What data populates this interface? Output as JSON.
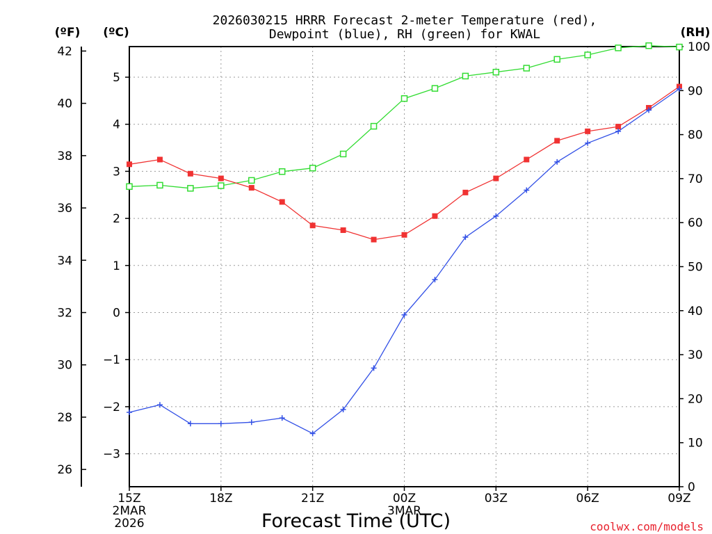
{
  "chart_data": {
    "type": "line",
    "title_line1": "2026030215 HRRR Forecast 2-meter Temperature (red),",
    "title_line2": "Dewpoint (blue), RH (green) for KWAL",
    "xlabel": "Forecast Time (UTC)",
    "credit": "coolwx.com/models",
    "units": {
      "fahrenheit": "(ºF)",
      "celsius": "(ºC)",
      "rh": "(RH)"
    },
    "x": [
      0,
      1,
      2,
      3,
      4,
      5,
      6,
      7,
      8,
      9,
      10,
      11,
      12,
      13,
      14,
      15,
      16,
      17,
      18
    ],
    "xlim": [
      0,
      18
    ],
    "x_ticks": [
      {
        "x": 0,
        "label": "15Z",
        "sub1": "2MAR",
        "sub2": "2026"
      },
      {
        "x": 3,
        "label": "18Z"
      },
      {
        "x": 6,
        "label": "21Z"
      },
      {
        "x": 9,
        "label": "00Z",
        "sub1": "3MAR"
      },
      {
        "x": 12,
        "label": "03Z"
      },
      {
        "x": 15,
        "label": "06Z"
      },
      {
        "x": 18,
        "label": "09Z"
      }
    ],
    "celsius_axis": {
      "ylim": [
        -3.7,
        5.65
      ],
      "ticks": [
        5,
        4,
        3,
        2,
        1,
        0,
        -1,
        -2,
        -3
      ],
      "tick_labels": [
        "5",
        "4",
        "3",
        "2",
        "1",
        "0",
        "−1",
        "−2",
        "−3"
      ]
    },
    "fahrenheit_axis": {
      "ticks": [
        42,
        40,
        38,
        36,
        34,
        32,
        30,
        28,
        26
      ],
      "tick_labels": [
        "42",
        "40",
        "38",
        "36",
        "34",
        "32",
        "30",
        "28",
        "26"
      ]
    },
    "rh_axis": {
      "ylim": [
        0,
        100
      ],
      "ticks": [
        100,
        90,
        80,
        70,
        60,
        50,
        40,
        30,
        20,
        10,
        0
      ],
      "tick_labels": [
        "100",
        "90",
        "80",
        "70",
        "60",
        "50",
        "40",
        "30",
        "20",
        "10",
        "0"
      ]
    },
    "series": [
      {
        "name": "Temperature",
        "units": "C",
        "color": "#f03232",
        "marker": "filled-square",
        "values": [
          3.15,
          3.25,
          2.95,
          2.85,
          2.65,
          2.35,
          1.85,
          1.75,
          1.55,
          1.65,
          2.05,
          2.55,
          2.85,
          3.25,
          3.65,
          3.85,
          3.95,
          4.35,
          4.8
        ]
      },
      {
        "name": "Dewpoint",
        "units": "C",
        "color": "#3250e6",
        "marker": "plus",
        "values": [
          -2.12,
          -1.96,
          -2.36,
          -2.36,
          -2.33,
          -2.24,
          -2.57,
          -2.06,
          -1.18,
          -0.05,
          0.7,
          1.6,
          2.05,
          2.6,
          3.2,
          3.6,
          3.85,
          4.3,
          4.75
        ]
      },
      {
        "name": "RH",
        "units": "%",
        "color": "#32dc32",
        "marker": "open-square",
        "values": [
          68.2,
          68.5,
          67.8,
          68.4,
          69.6,
          71.6,
          72.4,
          75.6,
          81.9,
          88.2,
          90.5,
          93.3,
          94.2,
          95.1,
          97.1,
          98.1,
          99.7,
          100.2,
          99.9
        ]
      }
    ]
  }
}
